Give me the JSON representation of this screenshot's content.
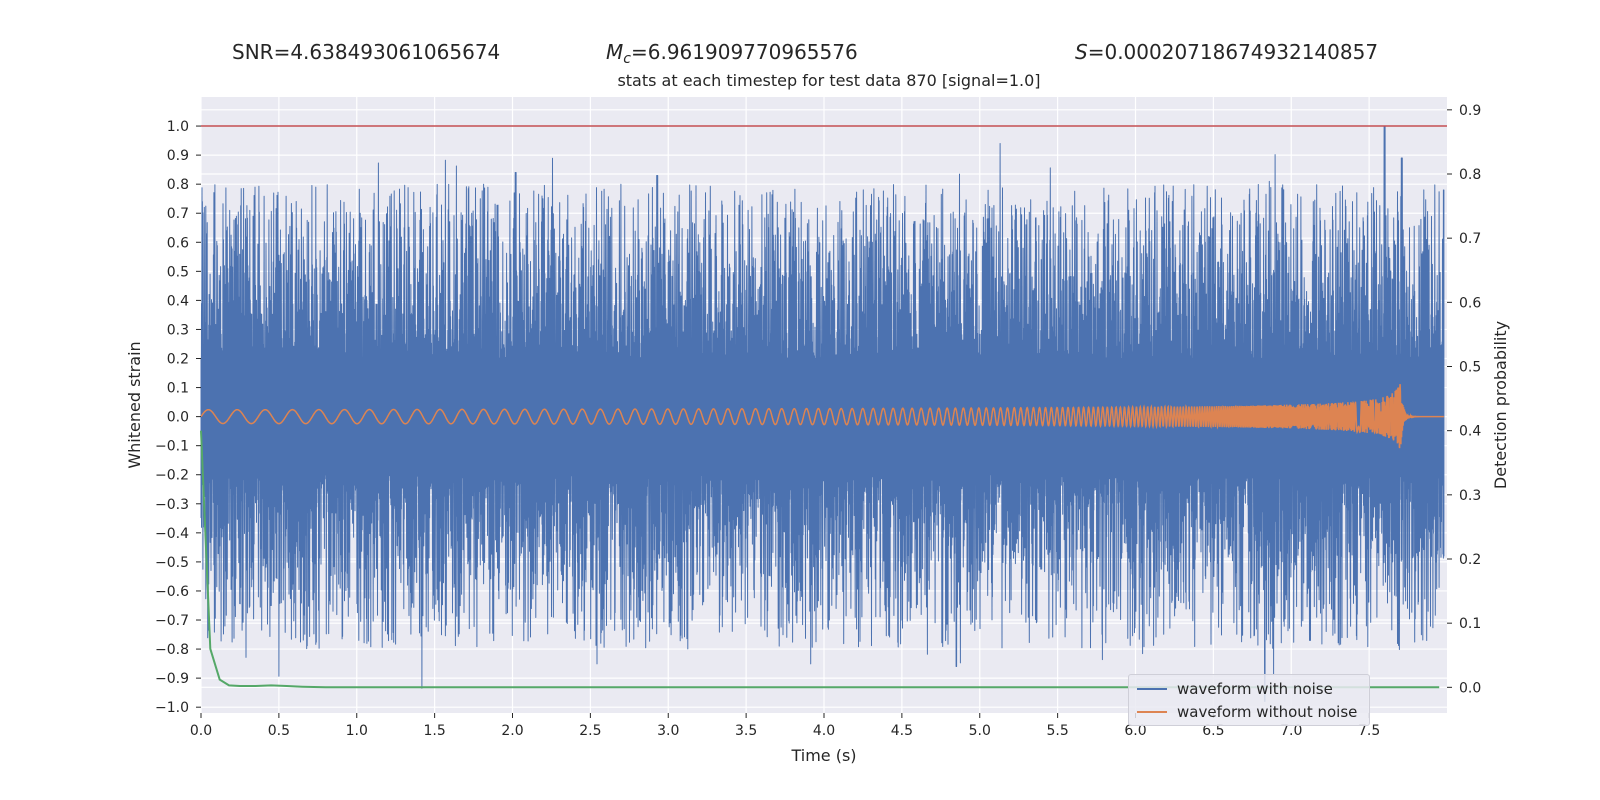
{
  "stats": {
    "snr": {
      "label": "SNR",
      "value": "4.638493061065674"
    },
    "mc": {
      "label": "M",
      "label_sub": "c",
      "value": "6.961909770965576"
    },
    "s": {
      "label": "S",
      "value": "0.00020718674932140857"
    }
  },
  "colors": {
    "background": "#eaeaf2",
    "grid": "#ffffff",
    "noisy": "#4c72b0",
    "clean": "#dd8452",
    "probability": "#55a868",
    "threshold": "#c44e52"
  },
  "chart_data": {
    "type": "line",
    "title": "stats at each timestep for test data 870 [signal=1.0]",
    "xlabel": "Time (s)",
    "ylabel": "Whitened strain",
    "y2label": "Detection probability",
    "xlim": [
      0.0,
      8.0
    ],
    "ylim": [
      -1.02,
      1.1
    ],
    "y2lim": [
      -0.04,
      0.92
    ],
    "xticks": [
      0.0,
      0.5,
      1.0,
      1.5,
      2.0,
      2.5,
      3.0,
      3.5,
      4.0,
      4.5,
      5.0,
      5.5,
      6.0,
      6.5,
      7.0,
      7.5
    ],
    "xtick_labels": [
      "0.0",
      "0.5",
      "1.0",
      "1.5",
      "2.0",
      "2.5",
      "3.0",
      "3.5",
      "4.0",
      "4.5",
      "5.0",
      "5.5",
      "6.0",
      "6.5",
      "7.0",
      "7.5"
    ],
    "yticks": [
      1.0,
      0.9,
      0.8,
      0.7,
      0.6,
      0.5,
      0.4,
      0.3,
      0.2,
      0.1,
      0.0,
      -0.1,
      -0.2,
      -0.3,
      -0.4,
      -0.5,
      -0.6,
      -0.7,
      -0.8,
      -0.9,
      -1.0
    ],
    "ytick_labels": [
      "1.0",
      "0.9",
      "0.8",
      "0.7",
      "0.6",
      "0.5",
      "0.4",
      "0.3",
      "0.2",
      "0.1",
      "0.0",
      "−0.1",
      "−0.2",
      "−0.3",
      "−0.4",
      "−0.5",
      "−0.6",
      "−0.7",
      "−0.8",
      "−0.9",
      "−1.0"
    ],
    "y2ticks": [
      0.9,
      0.8,
      0.7,
      0.6,
      0.5,
      0.4,
      0.3,
      0.2,
      0.1,
      0.0
    ],
    "y2tick_labels": [
      "0.9",
      "0.8",
      "0.7",
      "0.6",
      "0.5",
      "0.4",
      "0.3",
      "0.2",
      "0.1",
      "0.0"
    ],
    "grid": true,
    "legend_position": "lower-right",
    "series": [
      {
        "name": "waveform with noise",
        "axis": "left",
        "description_envelope": {
          "upper_typical": 0.45,
          "lower_typical": -0.45,
          "max": [
            [
              2.02,
              0.84
            ],
            [
              2.93,
              0.83
            ],
            [
              7.6,
              1.0
            ],
            [
              7.71,
              0.89
            ],
            [
              7.98,
              0.78
            ]
          ],
          "min": [
            [
              4.85,
              -0.86
            ],
            [
              6.83,
              -0.98
            ],
            [
              7.12,
              -0.77
            ],
            [
              0.45,
              -0.65
            ]
          ]
        }
      },
      {
        "name": "waveform without noise",
        "axis": "left",
        "description_chirp": {
          "start": 0.0,
          "merger_time": 7.7,
          "amplitude_start": 0.01,
          "amplitude_peak": 0.12
        }
      },
      {
        "name": "",
        "axis": "right",
        "x": [
          0.0,
          0.06,
          0.12,
          0.18,
          0.25,
          0.35,
          0.45,
          0.55,
          0.65,
          0.8,
          1.0,
          2.0,
          3.0,
          4.0,
          5.0,
          6.0,
          7.0,
          7.95
        ],
        "values": [
          0.4,
          0.06,
          0.012,
          0.003,
          0.002,
          0.002,
          0.003,
          0.002,
          0.001,
          0.0,
          0.0,
          0.0,
          0.0,
          0.0,
          0.0,
          0.0,
          0.0,
          0.0
        ]
      }
    ],
    "hlines": [
      {
        "axis": "left",
        "value": 1.0,
        "color": "#c44e52"
      }
    ]
  }
}
